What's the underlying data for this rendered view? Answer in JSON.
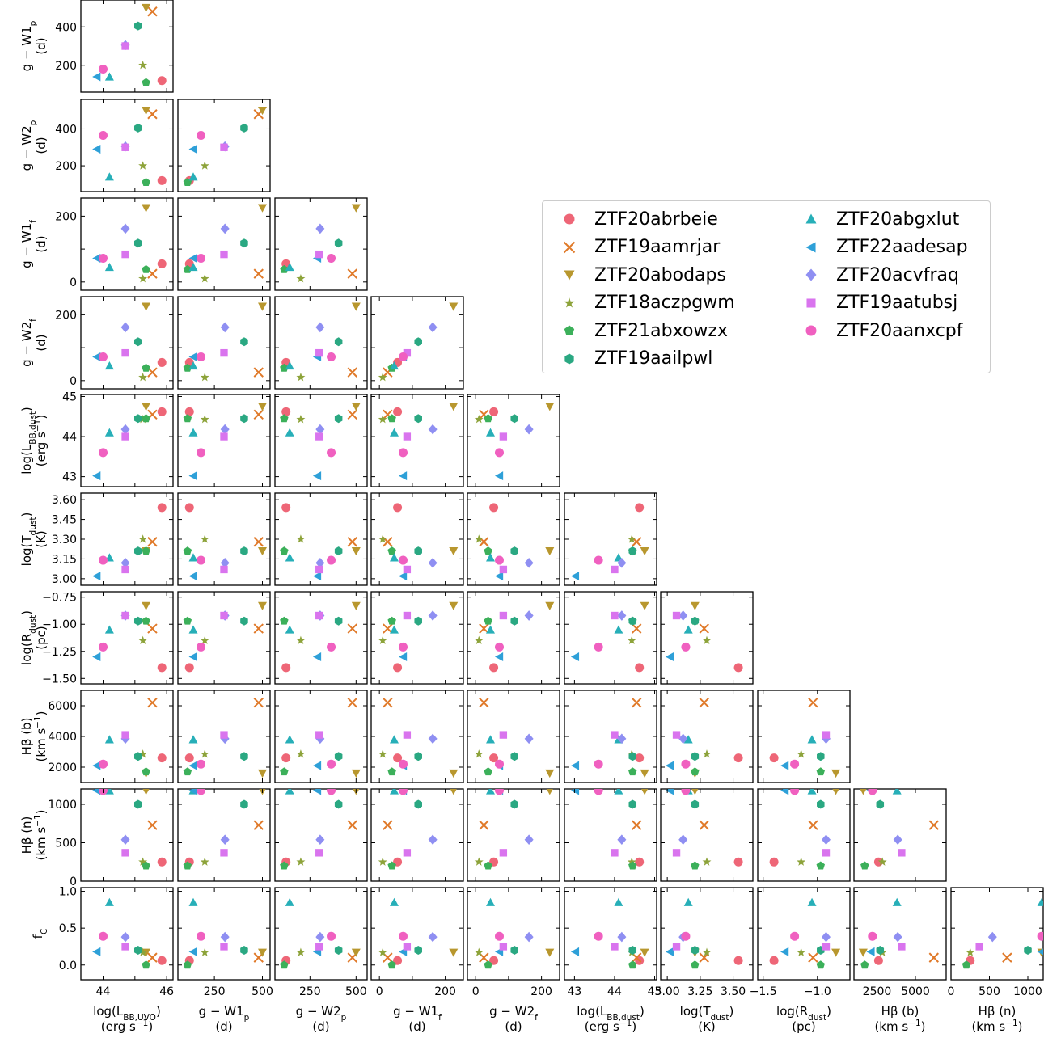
{
  "chart_data": {
    "type": "scatter",
    "subtype": "corner-plot",
    "legend_position": "upper-right",
    "grid": false,
    "objects": [
      {
        "name": "ZTF20abrbeie",
        "color": "#ee6677",
        "marker": "circle"
      },
      {
        "name": "ZTF19aamrjar",
        "color": "#e07a2a",
        "marker": "x"
      },
      {
        "name": "ZTF20abodaps",
        "color": "#b8972e",
        "marker": "triangle-down"
      },
      {
        "name": "ZTF18aczpgwm",
        "color": "#8da33a",
        "marker": "star"
      },
      {
        "name": "ZTF21abxowzx",
        "color": "#3cb05a",
        "marker": "pentagon"
      },
      {
        "name": "ZTF19aailpwl",
        "color": "#2aa882",
        "marker": "hexagon"
      },
      {
        "name": "ZTF20abgxlut",
        "color": "#27afb8",
        "marker": "triangle-up"
      },
      {
        "name": "ZTF22aadesap",
        "color": "#2ea0d8",
        "marker": "triangle-left"
      },
      {
        "name": "ZTF20acvfraq",
        "color": "#8f8ff2",
        "marker": "diamond"
      },
      {
        "name": "ZTF19aatubsj",
        "color": "#d974ee",
        "marker": "square"
      },
      {
        "name": "ZTF20aanxcpf",
        "color": "#f060c0",
        "marker": "circle"
      }
    ],
    "variables": [
      {
        "key": "logLuvo",
        "label": [
          "log(L",
          "BB,UVO",
          ")"
        ],
        "unit": [
          "(erg s",
          "−1",
          ")"
        ],
        "range": [
          43.3,
          46.2
        ],
        "ticks": [
          44,
          45,
          46
        ],
        "tick_labels": [
          "44",
          "",
          "46"
        ]
      },
      {
        "key": "gW1p",
        "label": [
          "g − W1",
          "p",
          ""
        ],
        "unit": [
          "(d)",
          "",
          ""
        ],
        "range": [
          60,
          540
        ],
        "ticks": [
          200,
          400
        ],
        "tick_labels": [
          "200",
          "400"
        ],
        "x_ticks": [
          250,
          500
        ],
        "x_tick_labels": [
          "250",
          "500"
        ]
      },
      {
        "key": "gW2p",
        "label": [
          "g − W2",
          "p",
          ""
        ],
        "unit": [
          "(d)",
          "",
          ""
        ],
        "range": [
          60,
          560
        ],
        "ticks": [
          200,
          400
        ],
        "tick_labels": [
          "200",
          "400"
        ],
        "x_ticks": [
          250,
          500
        ],
        "x_tick_labels": [
          "250",
          "500"
        ]
      },
      {
        "key": "gW1f",
        "label": [
          "g − W1",
          "f",
          ""
        ],
        "unit": [
          "(d)",
          "",
          ""
        ],
        "range": [
          -25,
          255
        ],
        "ticks": [
          0,
          100,
          200
        ],
        "tick_labels": [
          "0",
          "",
          "200"
        ],
        "x_ticks": [
          0,
          100,
          200
        ],
        "x_tick_labels": [
          "0",
          "",
          "200"
        ]
      },
      {
        "key": "gW2f",
        "label": [
          "g − W2",
          "f",
          ""
        ],
        "unit": [
          "(d)",
          "",
          ""
        ],
        "range": [
          -25,
          255
        ],
        "ticks": [
          0,
          100,
          200
        ],
        "tick_labels": [
          "0",
          "",
          "200"
        ],
        "x_ticks": [
          0,
          100,
          200
        ],
        "x_tick_labels": [
          "0",
          "",
          "200"
        ]
      },
      {
        "key": "logLdust",
        "label": [
          "log(L",
          "BB,dust",
          ")"
        ],
        "unit": [
          "(erg s",
          "−1",
          ")"
        ],
        "range": [
          42.75,
          45.05
        ],
        "ticks": [
          43,
          44,
          45
        ],
        "tick_labels": [
          "43",
          "44",
          "45"
        ]
      },
      {
        "key": "logTdust",
        "label": [
          "log(T",
          "dust",
          ")"
        ],
        "unit": [
          "(K)",
          "",
          ""
        ],
        "range": [
          2.95,
          3.65
        ],
        "ticks": [
          3.0,
          3.15,
          3.3,
          3.45,
          3.6
        ],
        "tick_labels": [
          "3.00",
          "3.15",
          "3.30",
          "3.45",
          "3.60"
        ],
        "x_ticks": [
          3.0,
          3.25,
          3.5
        ],
        "x_tick_labels": [
          "3.00",
          "3.25",
          "3.50"
        ]
      },
      {
        "key": "logRdust",
        "label": [
          "log(R",
          "dust",
          ")"
        ],
        "unit": [
          "(pc)",
          "",
          ""
        ],
        "range": [
          -1.55,
          -0.7
        ],
        "ticks": [
          -1.5,
          -1.25,
          -1.0,
          -0.75
        ],
        "tick_labels": [
          "−1.50",
          "−1.25",
          "−1.00",
          "−0.75"
        ],
        "x_ticks": [
          -1.5,
          -1.0
        ],
        "x_tick_labels": [
          "−1.5",
          "−1.0"
        ]
      },
      {
        "key": "Hb_b",
        "label": [
          "Hβ (b)",
          "",
          ""
        ],
        "unit": [
          "(km s",
          "−1",
          ")"
        ],
        "range": [
          1000,
          7000
        ],
        "ticks": [
          2000,
          4000,
          6000
        ],
        "tick_labels": [
          "2000",
          "4000",
          "6000"
        ],
        "x_ticks": [
          2500,
          5000
        ],
        "x_tick_labels": [
          "2500",
          "5000"
        ]
      },
      {
        "key": "Hb_n",
        "label": [
          "Hβ (n)",
          "",
          ""
        ],
        "unit": [
          "(km s",
          "−1",
          ")"
        ],
        "range": [
          0,
          1200
        ],
        "ticks": [
          0,
          500,
          1000
        ],
        "tick_labels": [
          "0",
          "500",
          "1000"
        ]
      },
      {
        "key": "fC",
        "label": [
          "f",
          "C",
          ""
        ],
        "unit": [
          "",
          "",
          ""
        ],
        "range": [
          -0.2,
          1.05
        ],
        "ticks": [
          0.0,
          0.5,
          1.0
        ],
        "tick_labels": [
          "0.0",
          "0.5",
          "1.0"
        ]
      }
    ],
    "values": {
      "ZTF20abrbeie": {
        "logLuvo": 45.85,
        "gW1p": 120,
        "gW2p": 120,
        "gW1f": 55,
        "gW2f": 55,
        "logLdust": 44.62,
        "logTdust": 3.54,
        "logRdust": -1.4,
        "Hb_b": 2600,
        "Hb_n": 250,
        "fC": 0.06
      },
      "ZTF19aamrjar": {
        "logLuvo": 45.55,
        "gW1p": 480,
        "gW2p": 480,
        "gW1f": 25,
        "gW2f": 25,
        "logLdust": 44.55,
        "logTdust": 3.28,
        "logRdust": -1.04,
        "Hb_b": 6200,
        "Hb_n": 730,
        "fC": 0.1
      },
      "ZTF20abodaps": {
        "logLuvo": 45.35,
        "gW1p": 500,
        "gW2p": 500,
        "gW1f": 225,
        "gW2f": 225,
        "logLdust": 44.75,
        "logTdust": 3.21,
        "logRdust": -0.83,
        "Hb_b": 1600,
        "Hb_n": 1180,
        "fC": 0.17
      },
      "ZTF18aczpgwm": {
        "logLuvo": 45.25,
        "gW1p": 200,
        "gW2p": 200,
        "gW1f": 10,
        "gW2f": 10,
        "logLdust": 44.43,
        "logTdust": 3.3,
        "logRdust": -1.15,
        "Hb_b": 2850,
        "Hb_n": 250,
        "fC": 0.17
      },
      "ZTF21abxowzx": {
        "logLuvo": 45.35,
        "gW1p": 110,
        "gW2p": 110,
        "gW1f": 38,
        "gW2f": 38,
        "logLdust": 44.45,
        "logTdust": 3.21,
        "logRdust": -0.97,
        "Hb_b": 1700,
        "Hb_n": 200,
        "fC": 0.0
      },
      "ZTF19aailpwl": {
        "logLuvo": 45.1,
        "gW1p": 405,
        "gW2p": 405,
        "gW1f": 118,
        "gW2f": 118,
        "logLdust": 44.45,
        "logTdust": 3.21,
        "logRdust": -0.97,
        "Hb_b": 2700,
        "Hb_n": 1000,
        "fC": 0.2
      },
      "ZTF20abgxlut": {
        "logLuvo": 44.2,
        "gW1p": 140,
        "gW2p": 140,
        "gW1f": 45,
        "gW2f": 45,
        "logLdust": 44.1,
        "logTdust": 3.16,
        "logRdust": -1.05,
        "Hb_b": 3800,
        "Hb_n": 1180,
        "fC": 0.85
      },
      "ZTF22aadesap": {
        "logLuvo": 43.8,
        "gW1p": 140,
        "gW2p": 290,
        "gW1f": 72,
        "gW2f": 72,
        "logLdust": 43.02,
        "logTdust": 3.02,
        "logRdust": -1.3,
        "Hb_b": 2100,
        "Hb_n": 1180,
        "fC": 0.18
      },
      "ZTF20acvfraq": {
        "logLuvo": 44.7,
        "gW1p": 305,
        "gW2p": 305,
        "gW1f": 162,
        "gW2f": 162,
        "logLdust": 44.18,
        "logTdust": 3.12,
        "logRdust": -0.92,
        "Hb_b": 3850,
        "Hb_n": 540,
        "fC": 0.38
      },
      "ZTF19aatubsj": {
        "logLuvo": 44.7,
        "gW1p": 300,
        "gW2p": 300,
        "gW1f": 84,
        "gW2f": 84,
        "logLdust": 44.0,
        "logTdust": 3.07,
        "logRdust": -0.92,
        "Hb_b": 4100,
        "Hb_n": 370,
        "fC": 0.25
      },
      "ZTF20aanxcpf": {
        "logLuvo": 44.0,
        "gW1p": 180,
        "gW2p": 365,
        "gW1f": 72,
        "gW2f": 72,
        "logLdust": 43.6,
        "logTdust": 3.14,
        "logRdust": -1.21,
        "Hb_b": 2200,
        "Hb_n": 1180,
        "fC": 0.39
      }
    }
  },
  "legend": {
    "entries": [
      "ZTF20abrbeie",
      "ZTF19aamrjar",
      "ZTF20abodaps",
      "ZTF18aczpgwm",
      "ZTF21abxowzx",
      "ZTF19aailpwl",
      "ZTF20abgxlut",
      "ZTF22aadesap",
      "ZTF20acvfraq",
      "ZTF19aatubsj",
      "ZTF20aanxcpf"
    ]
  }
}
